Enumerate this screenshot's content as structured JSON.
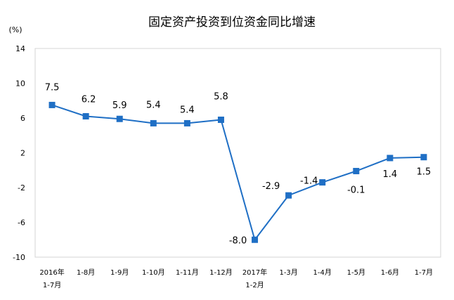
{
  "chart_data": {
    "type": "line",
    "title": "固定资产投资到位资金同比增速",
    "ylabel": "(%)",
    "xlabel": "",
    "ylim": [
      -10,
      14
    ],
    "yticks": [
      14,
      10,
      6,
      2,
      -2,
      -6,
      -10
    ],
    "grid": false,
    "categories": [
      {
        "line1": "2016年",
        "line2": "1-7月"
      },
      {
        "line1": "1-8月",
        "line2": ""
      },
      {
        "line1": "1-9月",
        "line2": ""
      },
      {
        "line1": "1-10月",
        "line2": ""
      },
      {
        "line1": "1-11月",
        "line2": ""
      },
      {
        "line1": "1-12月",
        "line2": ""
      },
      {
        "line1": "2017年",
        "line2": "1-2月"
      },
      {
        "line1": "1-3月",
        "line2": ""
      },
      {
        "line1": "1-4月",
        "line2": ""
      },
      {
        "line1": "1-5月",
        "line2": ""
      },
      {
        "line1": "1-6月",
        "line2": ""
      },
      {
        "line1": "1-7月",
        "line2": ""
      }
    ],
    "series": [
      {
        "values": [
          7.5,
          6.2,
          5.9,
          5.4,
          5.4,
          5.8,
          -8.0,
          -2.9,
          -1.4,
          -0.1,
          1.4,
          1.5
        ],
        "labels": [
          "7.5",
          "6.2",
          "5.9",
          "5.4",
          "5.4",
          "5.8",
          "-8.0",
          "-2.9",
          "-1.4",
          "-0.1",
          "1.4",
          "1.5"
        ],
        "color": "#1f6fc5"
      }
    ]
  }
}
